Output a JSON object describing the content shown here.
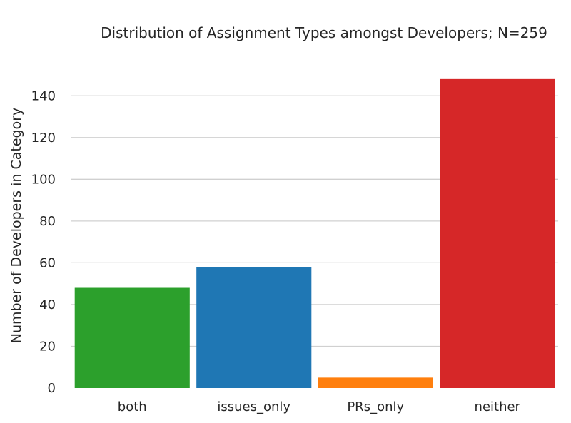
{
  "chart_data": {
    "type": "bar",
    "title": "Distribution of Assignment Types amongst Developers; N=259",
    "xlabel": "",
    "ylabel": "Number of Developers in Category",
    "categories": [
      "both",
      "issues_only",
      "PRs_only",
      "neither"
    ],
    "values": [
      48,
      58,
      5,
      148
    ],
    "colors": [
      "#2ca02c",
      "#1f77b4",
      "#ff7f0e",
      "#d62728"
    ],
    "ylim": [
      0,
      150
    ],
    "yticks": [
      0,
      20,
      40,
      60,
      80,
      100,
      120,
      140
    ],
    "grid": true,
    "legend": "none"
  }
}
